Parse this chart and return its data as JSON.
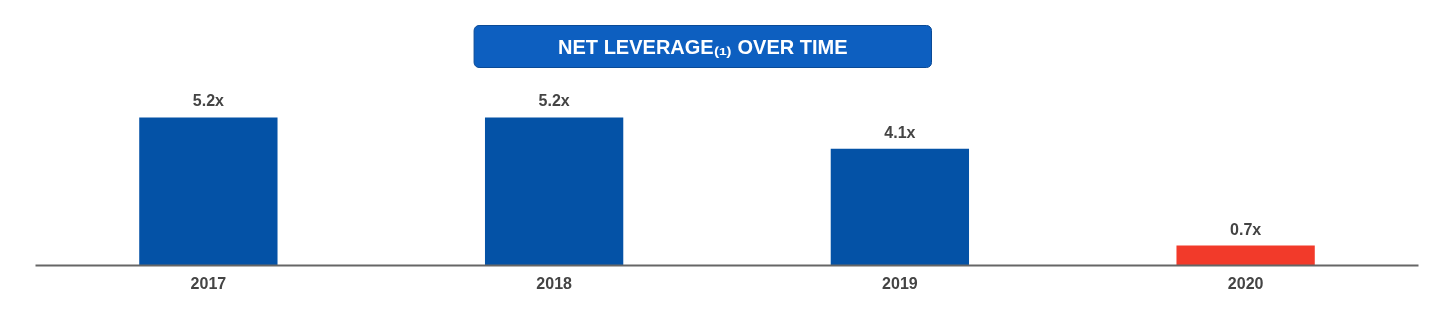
{
  "chart_data": {
    "type": "bar",
    "title": "NET LEVERAGE₍₁₎ OVER TIME",
    "categories": [
      "2017",
      "2018",
      "2019",
      "2020"
    ],
    "values": [
      5.2,
      5.2,
      4.1,
      0.7
    ],
    "colors": [
      "#0452a6",
      "#0452a6",
      "#0452a6",
      "#f23a2a"
    ],
    "value_labels": [
      "5.2x",
      "5.2x",
      "4.1x",
      "0.7x"
    ],
    "grid": false
  }
}
